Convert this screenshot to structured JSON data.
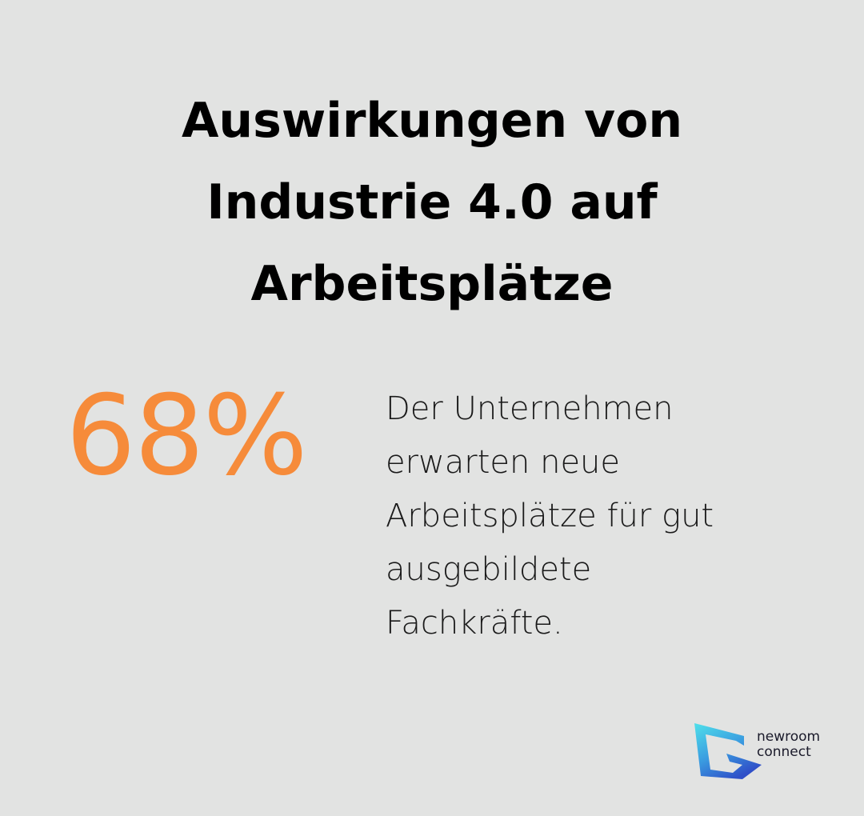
{
  "title": {
    "line1": "Auswirkungen von",
    "line2": "Industrie 4.0 auf",
    "line3": "Arbeitsplätze"
  },
  "stat": {
    "value": "68%",
    "description_lines": [
      "Der Unternehmen",
      "erwarten neue",
      "Arbeitsplätze für gut",
      "ausgebildete",
      "Fachkräfte."
    ]
  },
  "logo": {
    "line1": "newroom",
    "line2": "connect"
  },
  "colors": {
    "background": "#e2e3e2",
    "accent": "#f68b3a",
    "logo_cyan": "#4fd8e6",
    "logo_blue": "#2f5fcf"
  }
}
